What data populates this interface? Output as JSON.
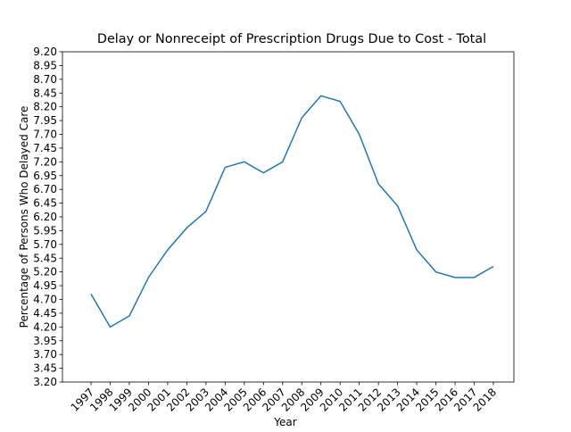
{
  "chart_data": {
    "type": "line",
    "title": "Delay or Nonreceipt of Prescription Drugs Due to Cost - Total",
    "x_label": "Year",
    "y_label": "Percentage of Persons Who Delayed Care",
    "categories": [
      "1997",
      "1998",
      "1999",
      "2000",
      "2001",
      "2002",
      "2003",
      "2004",
      "2005",
      "2006",
      "2007",
      "2008",
      "2009",
      "2010",
      "2011",
      "2012",
      "2013",
      "2014",
      "2015",
      "2016",
      "2017",
      "2018"
    ],
    "series": [
      {
        "color": "#1f77b4",
        "values": [
          4.8,
          4.2,
          4.4,
          5.1,
          5.6,
          6.0,
          6.3,
          7.1,
          7.2,
          7.0,
          7.2,
          8.0,
          8.4,
          8.3,
          7.7,
          6.8,
          6.4,
          5.6,
          5.2,
          5.1,
          5.1,
          5.3
        ]
      }
    ],
    "ylim": [
      3.2,
      9.2
    ],
    "yticks": [
      {
        "value": 3.2,
        "label": "3.20"
      },
      3.45,
      {
        "value": 3.7,
        "label": "3.70"
      },
      3.95,
      {
        "value": 4.2,
        "label": "4.20"
      },
      4.45,
      {
        "value": 4.7,
        "label": "4.70"
      },
      4.95,
      {
        "value": 5.2,
        "label": "5.20"
      },
      5.45,
      {
        "value": 5.7,
        "label": "5.70"
      },
      5.95,
      {
        "value": 6.2,
        "label": "6.20"
      },
      6.45,
      {
        "value": 6.7,
        "label": "6.70"
      },
      6.95,
      {
        "value": 7.2,
        "label": "7.20"
      },
      7.45,
      {
        "value": 7.7,
        "label": "7.70"
      },
      7.95,
      {
        "value": 8.2,
        "label": "8.20"
      },
      8.45,
      {
        "value": 8.7,
        "label": "8.70"
      },
      8.95,
      {
        "value": 9.2,
        "label": "9.20"
      }
    ],
    "grid": false
  }
}
